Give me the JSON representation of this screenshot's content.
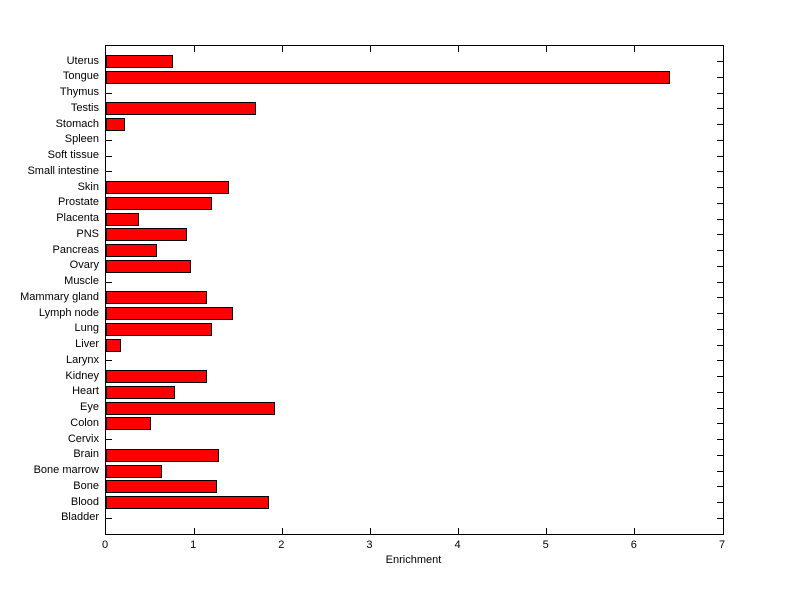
{
  "chart_data": {
    "type": "bar",
    "orientation": "horizontal",
    "title": "",
    "xlabel": "Enrichment",
    "ylabel": "",
    "xlim": [
      0,
      7
    ],
    "xticks": [
      0,
      1,
      2,
      3,
      4,
      5,
      6,
      7
    ],
    "grid": false,
    "legend": null,
    "bar_color": "#ff0000",
    "bar_edge_color": "#000000",
    "categories_top_to_bottom": [
      "Uterus",
      "Tongue",
      "Thymus",
      "Testis",
      "Stomach",
      "Spleen",
      "Soft tissue",
      "Small intestine",
      "Skin",
      "Prostate",
      "Placenta",
      "PNS",
      "Pancreas",
      "Ovary",
      "Muscle",
      "Mammary gland",
      "Lymph node",
      "Lung",
      "Liver",
      "Larynx",
      "Kidney",
      "Heart",
      "Eye",
      "Colon",
      "Cervix",
      "Brain",
      "Bone marrow",
      "Bone",
      "Blood",
      "Bladder"
    ],
    "values": [
      0.76,
      6.4,
      0,
      1.7,
      0.21,
      0,
      0,
      0,
      1.4,
      1.2,
      0.38,
      0.92,
      0.58,
      0.97,
      0,
      1.15,
      1.44,
      1.2,
      0.17,
      0,
      1.15,
      0.78,
      1.92,
      0.51,
      0,
      1.28,
      0.63,
      1.26,
      1.85,
      0
    ]
  }
}
